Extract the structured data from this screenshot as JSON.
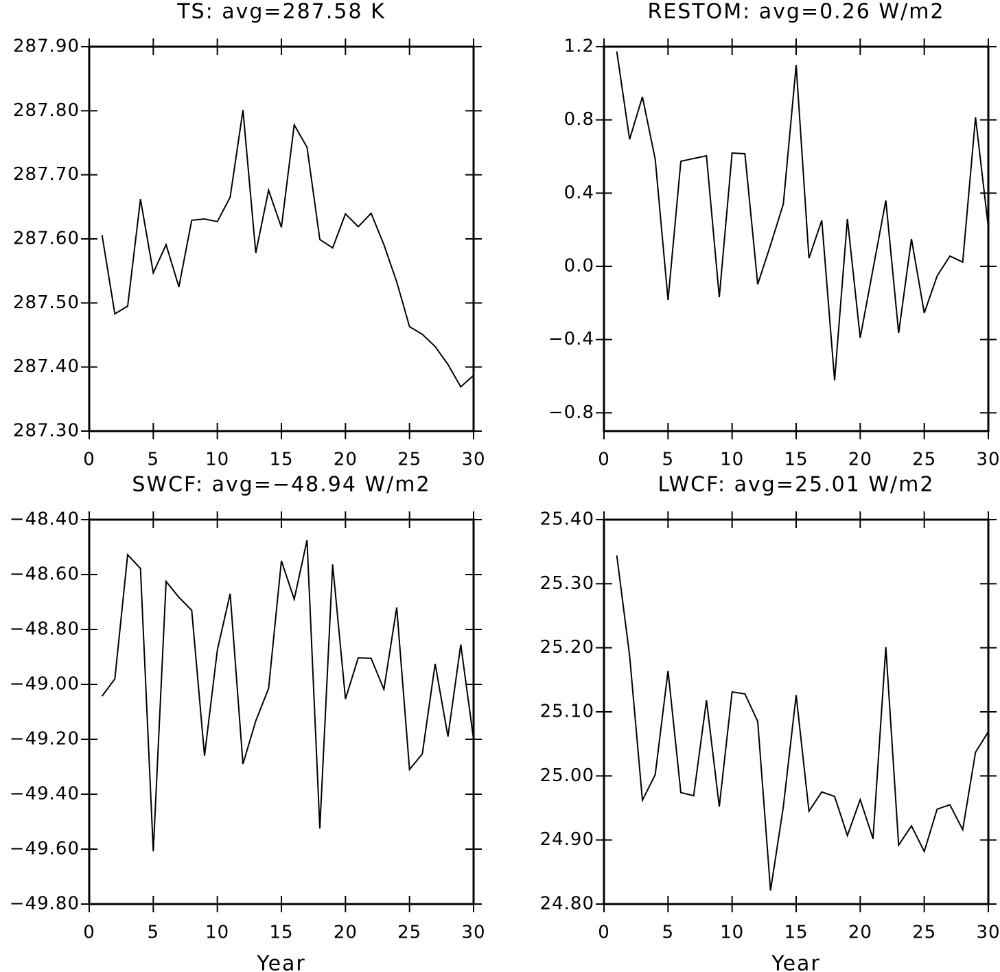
{
  "chart_data": [
    {
      "type": "line",
      "title": "TS: avg=287.58 K",
      "x": [
        1,
        2,
        3,
        4,
        5,
        6,
        7,
        8,
        9,
        10,
        11,
        12,
        13,
        14,
        15,
        16,
        17,
        18,
        19,
        20,
        21,
        22,
        23,
        24,
        25,
        26,
        27,
        28,
        29,
        30
      ],
      "series": [
        {
          "color": "#000000",
          "values": [
            287.606,
            287.483,
            287.495,
            287.662,
            287.547,
            287.591,
            287.525,
            287.629,
            287.631,
            287.627,
            287.665,
            287.801,
            287.578,
            287.676,
            287.618,
            287.778,
            287.743,
            287.599,
            287.586,
            287.639,
            287.619,
            287.64,
            287.591,
            287.533,
            287.463,
            287.451,
            287.432,
            287.404,
            287.369,
            287.387
          ]
        }
      ],
      "xlim": [
        0,
        30
      ],
      "xticks": [
        0,
        5,
        10,
        15,
        20,
        25,
        30
      ],
      "ylim": [
        287.3,
        287.9
      ],
      "yticks": [
        {
          "value": 287.3,
          "label": "287.30"
        },
        {
          "value": 287.4,
          "label": "287.40"
        },
        {
          "value": 287.5,
          "label": "287.50"
        },
        {
          "value": 287.6,
          "label": "287.60"
        },
        {
          "value": 287.7,
          "label": "287.70"
        },
        {
          "value": 287.8,
          "label": "287.80"
        },
        {
          "value": 287.9,
          "label": "287.90"
        }
      ]
    },
    {
      "type": "line",
      "title": "RESTOM: avg=0.26 W/m2",
      "x": [
        1,
        2,
        3,
        4,
        5,
        6,
        7,
        8,
        9,
        10,
        11,
        12,
        13,
        14,
        15,
        16,
        17,
        18,
        19,
        20,
        21,
        22,
        23,
        24,
        25,
        26,
        27,
        28,
        29,
        30
      ],
      "series": [
        {
          "color": "#000000",
          "values": [
            1.174,
            0.694,
            0.926,
            0.585,
            -0.184,
            0.574,
            0.589,
            0.604,
            -0.169,
            0.619,
            0.615,
            -0.098,
            0.116,
            0.341,
            1.099,
            0.045,
            0.251,
            -0.623,
            0.259,
            -0.39,
            -0.015,
            0.36,
            -0.364,
            0.15,
            -0.255,
            -0.053,
            0.056,
            0.023,
            0.814,
            0.214
          ]
        }
      ],
      "xlim": [
        0,
        30
      ],
      "xticks": [
        0,
        5,
        10,
        15,
        20,
        25,
        30
      ],
      "ylim": [
        -0.9,
        1.2
      ],
      "yticks": [
        {
          "value": -0.8,
          "label": "−0.8"
        },
        {
          "value": -0.4,
          "label": "−0.4"
        },
        {
          "value": 0,
          "label": "0.0"
        },
        0.4,
        0.8,
        1.2
      ]
    },
    {
      "type": "line",
      "title": "SWCF: avg=−48.94 W/m2",
      "xlabel": "Year",
      "x": [
        1,
        2,
        3,
        4,
        5,
        6,
        7,
        8,
        9,
        10,
        11,
        12,
        13,
        14,
        15,
        16,
        17,
        18,
        19,
        20,
        21,
        22,
        23,
        24,
        25,
        26,
        27,
        28,
        29,
        30
      ],
      "series": [
        {
          "color": "#000000",
          "values": [
            -49.043,
            -48.98,
            -48.528,
            -48.578,
            -49.608,
            -48.625,
            -48.683,
            -48.73,
            -49.26,
            -48.875,
            -48.67,
            -49.29,
            -49.133,
            -49.015,
            -48.55,
            -48.69,
            -48.475,
            -49.525,
            -48.563,
            -49.053,
            -48.903,
            -48.905,
            -49.018,
            -48.72,
            -49.31,
            -49.253,
            -48.925,
            -49.19,
            -48.855,
            -49.2
          ]
        }
      ],
      "xlim": [
        0,
        30
      ],
      "xticks": [
        0,
        5,
        10,
        15,
        20,
        25,
        30
      ],
      "ylim": [
        -49.8,
        -48.4
      ],
      "yticks": [
        {
          "value": -49.8,
          "label": "−49.80"
        },
        {
          "value": -49.6,
          "label": "−49.60"
        },
        {
          "value": -49.4,
          "label": "−49.40"
        },
        {
          "value": -49.2,
          "label": "−49.20"
        },
        {
          "value": -49.0,
          "label": "−49.00"
        },
        {
          "value": -48.8,
          "label": "−48.80"
        },
        {
          "value": -48.6,
          "label": "−48.60"
        },
        {
          "value": -48.4,
          "label": "−48.40"
        }
      ]
    },
    {
      "type": "line",
      "title": "LWCF: avg=25.01 W/m2",
      "xlabel": "Year",
      "x": [
        1,
        2,
        3,
        4,
        5,
        6,
        7,
        8,
        9,
        10,
        11,
        12,
        13,
        14,
        15,
        16,
        17,
        18,
        19,
        20,
        21,
        22,
        23,
        24,
        25,
        26,
        27,
        28,
        29,
        30
      ],
      "series": [
        {
          "color": "#000000",
          "values": [
            25.344,
            25.188,
            24.962,
            25.002,
            25.164,
            24.974,
            24.969,
            25.118,
            24.952,
            25.131,
            25.128,
            25.085,
            24.821,
            24.952,
            25.126,
            24.945,
            24.975,
            24.968,
            24.907,
            24.963,
            24.902,
            25.201,
            24.892,
            24.922,
            24.882,
            24.948,
            24.955,
            24.916,
            25.037,
            25.069
          ]
        }
      ],
      "xlim": [
        0,
        30
      ],
      "xticks": [
        0,
        5,
        10,
        15,
        20,
        25,
        30
      ],
      "ylim": [
        24.8,
        25.4
      ],
      "yticks": [
        {
          "value": 24.8,
          "label": "24.80"
        },
        {
          "value": 24.9,
          "label": "24.90"
        },
        {
          "value": 25.0,
          "label": "25.00"
        },
        {
          "value": 25.1,
          "label": "25.10"
        },
        {
          "value": 25.2,
          "label": "25.20"
        },
        {
          "value": 25.3,
          "label": "25.30"
        },
        {
          "value": 25.4,
          "label": "25.40"
        }
      ]
    }
  ]
}
